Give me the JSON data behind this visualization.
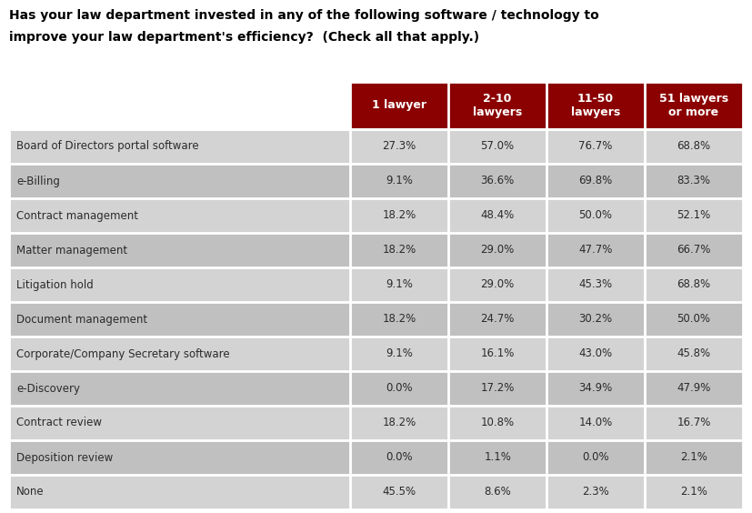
{
  "title_line1": "Has your law department invested in any of the following software / technology to",
  "title_line2": "improve your law department's efficiency?  (Check all that apply.)",
  "header_bg_color": "#8B0000",
  "header_text_color": "#FFFFFF",
  "row_bg_light": "#D3D3D3",
  "row_bg_dark": "#C0C0C0",
  "cell_text_color": "#2a2a2a",
  "border_color": "#FFFFFF",
  "col_headers": [
    "1 lawyer",
    "2-10\nlawyers",
    "11-50\nlawyers",
    "51 lawyers\nor more"
  ],
  "row_labels": [
    "Board of Directors portal software",
    "e-Billing",
    "Contract management",
    "Matter management",
    "Litigation hold",
    "Document management",
    "Corporate/Company Secretary software",
    "e-Discovery",
    "Contract review",
    "Deposition review",
    "None"
  ],
  "table_data": [
    [
      "27.3%",
      "57.0%",
      "76.7%",
      "68.8%"
    ],
    [
      "9.1%",
      "36.6%",
      "69.8%",
      "83.3%"
    ],
    [
      "18.2%",
      "48.4%",
      "50.0%",
      "52.1%"
    ],
    [
      "18.2%",
      "29.0%",
      "47.7%",
      "66.7%"
    ],
    [
      "9.1%",
      "29.0%",
      "45.3%",
      "68.8%"
    ],
    [
      "18.2%",
      "24.7%",
      "30.2%",
      "50.0%"
    ],
    [
      "9.1%",
      "16.1%",
      "43.0%",
      "45.8%"
    ],
    [
      "0.0%",
      "17.2%",
      "34.9%",
      "47.9%"
    ],
    [
      "18.2%",
      "10.8%",
      "14.0%",
      "16.7%"
    ],
    [
      "0.0%",
      "1.1%",
      "0.0%",
      "2.1%"
    ],
    [
      "45.5%",
      "8.6%",
      "2.3%",
      "2.1%"
    ]
  ],
  "fig_width": 8.27,
  "fig_height": 5.64,
  "dpi": 100
}
